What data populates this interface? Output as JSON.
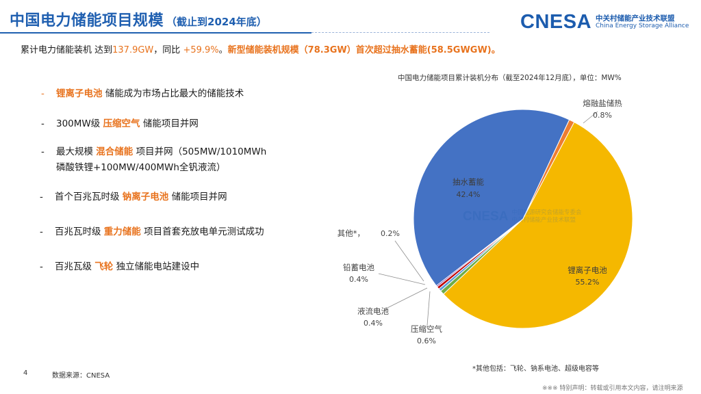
{
  "header": {
    "title": "中国电力储能项目规模",
    "subtitle": "（截止到2024年底）"
  },
  "logo": {
    "word": "CNESA",
    "cn": "中关村储能产业技术联盟",
    "en": "China Energy Storage Alliance"
  },
  "summary": {
    "p1": "累计电力储能装机  达到",
    "v1": "137.9GW",
    "p2": "，同比",
    "v2": "+59.9%",
    "p3": "。",
    "v3": "新型储能装机规模（78.3GW）首次超过抽水蓄能(58.5GWGW)。"
  },
  "bullets": [
    {
      "dash": "-",
      "pre": "",
      "kw": "锂离子电池",
      "post": " 储能成为市场占比最大的储能技术"
    },
    {
      "dash": "-",
      "pre": "300MW级 ",
      "kw": "压缩空气",
      "post": " 储能项目并网"
    },
    {
      "dash": "-",
      "pre": "最大规模 ",
      "kw": "混合储能",
      "post": " 项目并网（505MW/1010MWh"
    },
    {
      "dash": "",
      "pre": "磷酸铁锂+100MW/400MWh全钒液流）",
      "kw": "",
      "post": ""
    },
    {
      "dash": "-",
      "pre": "首个百兆瓦时级 ",
      "kw": "钠离子电池",
      "post": " 储能项目并网"
    },
    {
      "dash": "-",
      "pre": "百兆瓦时级 ",
      "kw": "重力储能",
      "post": " 项目首套充放电单元测试成功"
    },
    {
      "dash": "-",
      "pre": "百兆瓦级 ",
      "kw": "飞轮",
      "post": " 独立储能电站建设中"
    }
  ],
  "chart_data": {
    "type": "pie",
    "title": "中国电力储能项目累计装机分布（截至2024年12月底），单位：MW%",
    "start_label": "熔融盐储热",
    "slices": [
      {
        "name": "熔融盐储热",
        "value": 0.8,
        "label": "0.8%",
        "color": "#ed7d31"
      },
      {
        "name": "锂离子电池",
        "value": 55.2,
        "label": "55.2%",
        "color": "#f5b800"
      },
      {
        "name": "压缩空气",
        "value": 0.6,
        "label": "0.6%",
        "color": "#70ad47"
      },
      {
        "name": "液流电池",
        "value": 0.4,
        "label": "0.4%",
        "color": "#5b9bd5"
      },
      {
        "name": "铅蓄电池",
        "value": 0.4,
        "label": "0.4%",
        "color": "#c00000"
      },
      {
        "name": "其他*",
        "value": 0.2,
        "label": "0.2%",
        "color": "#7030a0"
      },
      {
        "name": "抽水蓄能",
        "value": 42.4,
        "label": "42.4%",
        "color": "#4472c4"
      }
    ]
  },
  "footnote": "*其他包括：飞轮、钠系电池、超级电容等",
  "source": "数据来源：CNESA",
  "page_number": "4",
  "disclaimer": "※※※ 特别声明：转载或引用本文内容，请注明来源",
  "watermark": {
    "word": "CNESA",
    "line1": "中关村储能产业技术联盟",
    "line2": "中国能源研究会储能专委会"
  },
  "colors": {
    "accent_blue": "#1f5fb0",
    "accent_orange": "#e8731e"
  }
}
